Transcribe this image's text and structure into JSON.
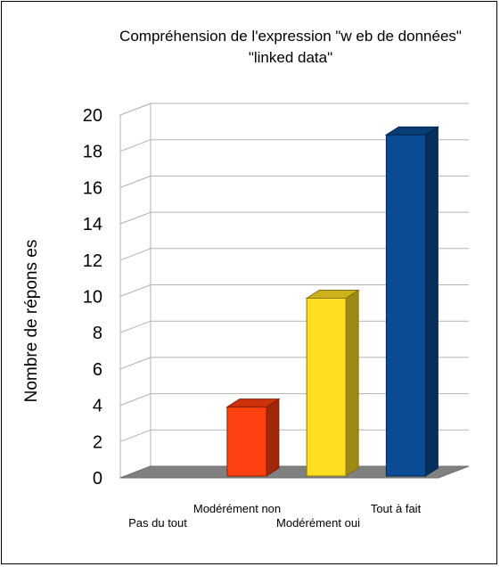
{
  "chart_data": {
    "type": "bar",
    "title_lines": [
      "Compréhension de l'expression \"w eb de données\"",
      "\"linked data\""
    ],
    "ylabel": "Nombre de répons es",
    "xlabel": "",
    "categories": [
      "Pas du tout",
      "Modérément non",
      "Modérément oui",
      "Tout à fait"
    ],
    "values": [
      0,
      4,
      10,
      19
    ],
    "ylim": [
      0,
      20
    ],
    "yticks": [
      "0",
      "2",
      "4",
      "6",
      "8",
      "10",
      "12",
      "14",
      "16",
      "18",
      "20"
    ],
    "grid": true,
    "three_d": true,
    "colors": [
      "#ff4010",
      "#ff4010",
      "#ffdd22",
      "#0a4b93"
    ]
  }
}
